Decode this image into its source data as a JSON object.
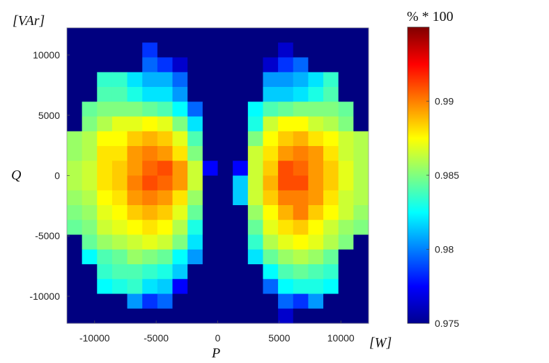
{
  "chart_data": {
    "type": "heatmap",
    "title": "",
    "xlabel": "P",
    "ylabel": "Q",
    "x_unit": "[W]",
    "y_unit": "[VAr]",
    "xlim": [
      -12250,
      12250
    ],
    "ylim": [
      -12250,
      12250
    ],
    "x_ticks": [
      -10000,
      -5000,
      0,
      5000,
      10000
    ],
    "y_ticks": [
      10000,
      5000,
      0,
      -5000,
      -10000
    ],
    "x_tick_labels": [
      "-10000",
      "-5000",
      "0",
      "5000",
      "10000"
    ],
    "y_tick_labels": [
      "10000",
      "5000",
      "0",
      "-5000",
      "-10000"
    ],
    "colorbar": {
      "title": "% * 100",
      "range": [
        0.975,
        0.995
      ],
      "ticks": [
        0.99,
        0.985,
        0.98,
        0.975
      ],
      "tick_labels": [
        "0.99",
        "0.985",
        "0.98",
        "0.975"
      ],
      "colormap": "jet"
    },
    "grid": false,
    "background_value": 0.975,
    "cell_size": 1225,
    "x_centers": [
      -11637.5,
      -10412.5,
      -9187.5,
      -7962.5,
      -6737.5,
      -5512.5,
      -4287.5,
      -3062.5,
      -1837.5,
      -612.5,
      612.5,
      1837.5,
      3062.5,
      4287.5,
      5512.5,
      6737.5,
      7962.5,
      9187.5,
      10412.5,
      11637.5
    ],
    "y_centers": [
      11637.5,
      10412.5,
      9187.5,
      7962.5,
      6737.5,
      5512.5,
      4287.5,
      3062.5,
      1837.5,
      612.5,
      -612.5,
      -1837.5,
      -3062.5,
      -4287.5,
      -5512.5,
      -6737.5,
      -7962.5,
      -9187.5,
      -10412.5,
      -11637.5
    ],
    "values": [
      [
        0.975,
        0.975,
        0.975,
        0.975,
        0.975,
        0.975,
        0.975,
        0.975,
        0.975,
        0.975,
        0.975,
        0.975,
        0.975,
        0.975,
        0.975,
        0.975,
        0.975,
        0.975,
        0.975,
        0.975
      ],
      [
        0.975,
        0.975,
        0.975,
        0.975,
        0.975,
        0.9785,
        0.975,
        0.975,
        0.975,
        0.975,
        0.975,
        0.975,
        0.975,
        0.975,
        0.9765,
        0.975,
        0.975,
        0.975,
        0.975,
        0.975
      ],
      [
        0.975,
        0.975,
        0.975,
        0.975,
        0.975,
        0.9795,
        0.9785,
        0.9765,
        0.975,
        0.975,
        0.975,
        0.975,
        0.975,
        0.9765,
        0.9785,
        0.9795,
        0.975,
        0.975,
        0.975,
        0.975
      ],
      [
        0.975,
        0.975,
        0.9835,
        0.9835,
        0.982,
        0.981,
        0.981,
        0.9795,
        0.975,
        0.975,
        0.975,
        0.975,
        0.975,
        0.9805,
        0.9805,
        0.981,
        0.982,
        0.9835,
        0.975,
        0.975
      ],
      [
        0.975,
        0.975,
        0.984,
        0.984,
        0.983,
        0.982,
        0.982,
        0.9805,
        0.975,
        0.975,
        0.975,
        0.975,
        0.975,
        0.9815,
        0.9815,
        0.982,
        0.983,
        0.984,
        0.975,
        0.975
      ],
      [
        0.975,
        0.9845,
        0.985,
        0.985,
        0.985,
        0.9845,
        0.984,
        0.9825,
        0.9795,
        0.975,
        0.975,
        0.975,
        0.9825,
        0.984,
        0.9845,
        0.985,
        0.985,
        0.985,
        0.9845,
        0.975
      ],
      [
        0.975,
        0.985,
        0.986,
        0.987,
        0.987,
        0.9875,
        0.987,
        0.985,
        0.982,
        0.975,
        0.975,
        0.975,
        0.983,
        0.9865,
        0.9875,
        0.9875,
        0.9865,
        0.986,
        0.985,
        0.975
      ],
      [
        0.9855,
        0.986,
        0.9875,
        0.9875,
        0.9885,
        0.989,
        0.9885,
        0.987,
        0.984,
        0.975,
        0.975,
        0.975,
        0.985,
        0.9875,
        0.9885,
        0.989,
        0.988,
        0.9875,
        0.9865,
        0.986
      ],
      [
        0.9855,
        0.986,
        0.988,
        0.988,
        0.9895,
        0.99,
        0.9895,
        0.988,
        0.985,
        0.975,
        0.975,
        0.975,
        0.9865,
        0.988,
        0.9895,
        0.99,
        0.9895,
        0.988,
        0.9865,
        0.986
      ],
      [
        0.986,
        0.9865,
        0.988,
        0.9885,
        0.9895,
        0.9905,
        0.991,
        0.9895,
        0.9865,
        0.9775,
        0.975,
        0.9775,
        0.9865,
        0.9885,
        0.991,
        0.9905,
        0.9895,
        0.9885,
        0.987,
        0.986
      ],
      [
        0.986,
        0.9865,
        0.988,
        0.9885,
        0.99,
        0.991,
        0.9905,
        0.9895,
        0.9865,
        0.975,
        0.975,
        0.9815,
        0.9865,
        0.989,
        0.991,
        0.991,
        0.9895,
        0.9885,
        0.987,
        0.986
      ],
      [
        0.9855,
        0.986,
        0.9875,
        0.988,
        0.9895,
        0.99,
        0.9895,
        0.988,
        0.9855,
        0.975,
        0.975,
        0.9815,
        0.9865,
        0.9885,
        0.99,
        0.99,
        0.9895,
        0.988,
        0.9865,
        0.986
      ],
      [
        0.985,
        0.9855,
        0.987,
        0.9875,
        0.9885,
        0.989,
        0.9885,
        0.987,
        0.9845,
        0.975,
        0.975,
        0.975,
        0.9855,
        0.9875,
        0.989,
        0.99,
        0.9885,
        0.9875,
        0.9865,
        0.9855
      ],
      [
        0.9845,
        0.985,
        0.9865,
        0.987,
        0.9875,
        0.988,
        0.9875,
        0.986,
        0.983,
        0.975,
        0.975,
        0.975,
        0.9845,
        0.987,
        0.988,
        0.9885,
        0.9875,
        0.9865,
        0.9855,
        0.985
      ],
      [
        0.975,
        0.9845,
        0.9855,
        0.986,
        0.9865,
        0.987,
        0.9865,
        0.985,
        0.982,
        0.975,
        0.975,
        0.975,
        0.9835,
        0.986,
        0.987,
        0.9875,
        0.987,
        0.986,
        0.985,
        0.975
      ],
      [
        0.975,
        0.9825,
        0.984,
        0.9845,
        0.9855,
        0.985,
        0.9845,
        0.9825,
        0.9805,
        0.975,
        0.975,
        0.975,
        0.982,
        0.9845,
        0.9855,
        0.986,
        0.9855,
        0.9845,
        0.975,
        0.975
      ],
      [
        0.975,
        0.975,
        0.9835,
        0.984,
        0.984,
        0.9835,
        0.983,
        0.9815,
        0.975,
        0.975,
        0.975,
        0.975,
        0.975,
        0.9825,
        0.984,
        0.9845,
        0.984,
        0.9835,
        0.975,
        0.975
      ],
      [
        0.975,
        0.975,
        0.9825,
        0.983,
        0.9835,
        0.982,
        0.9815,
        0.9775,
        0.975,
        0.975,
        0.975,
        0.975,
        0.975,
        0.9795,
        0.9825,
        0.983,
        0.983,
        0.9825,
        0.975,
        0.975
      ],
      [
        0.975,
        0.975,
        0.975,
        0.975,
        0.9805,
        0.9785,
        0.9795,
        0.975,
        0.975,
        0.975,
        0.975,
        0.975,
        0.975,
        0.975,
        0.9795,
        0.9785,
        0.9805,
        0.975,
        0.975,
        0.975
      ],
      [
        0.975,
        0.975,
        0.975,
        0.975,
        0.975,
        0.975,
        0.975,
        0.975,
        0.975,
        0.975,
        0.975,
        0.975,
        0.975,
        0.975,
        0.9765,
        0.975,
        0.975,
        0.975,
        0.975,
        0.975
      ]
    ]
  }
}
